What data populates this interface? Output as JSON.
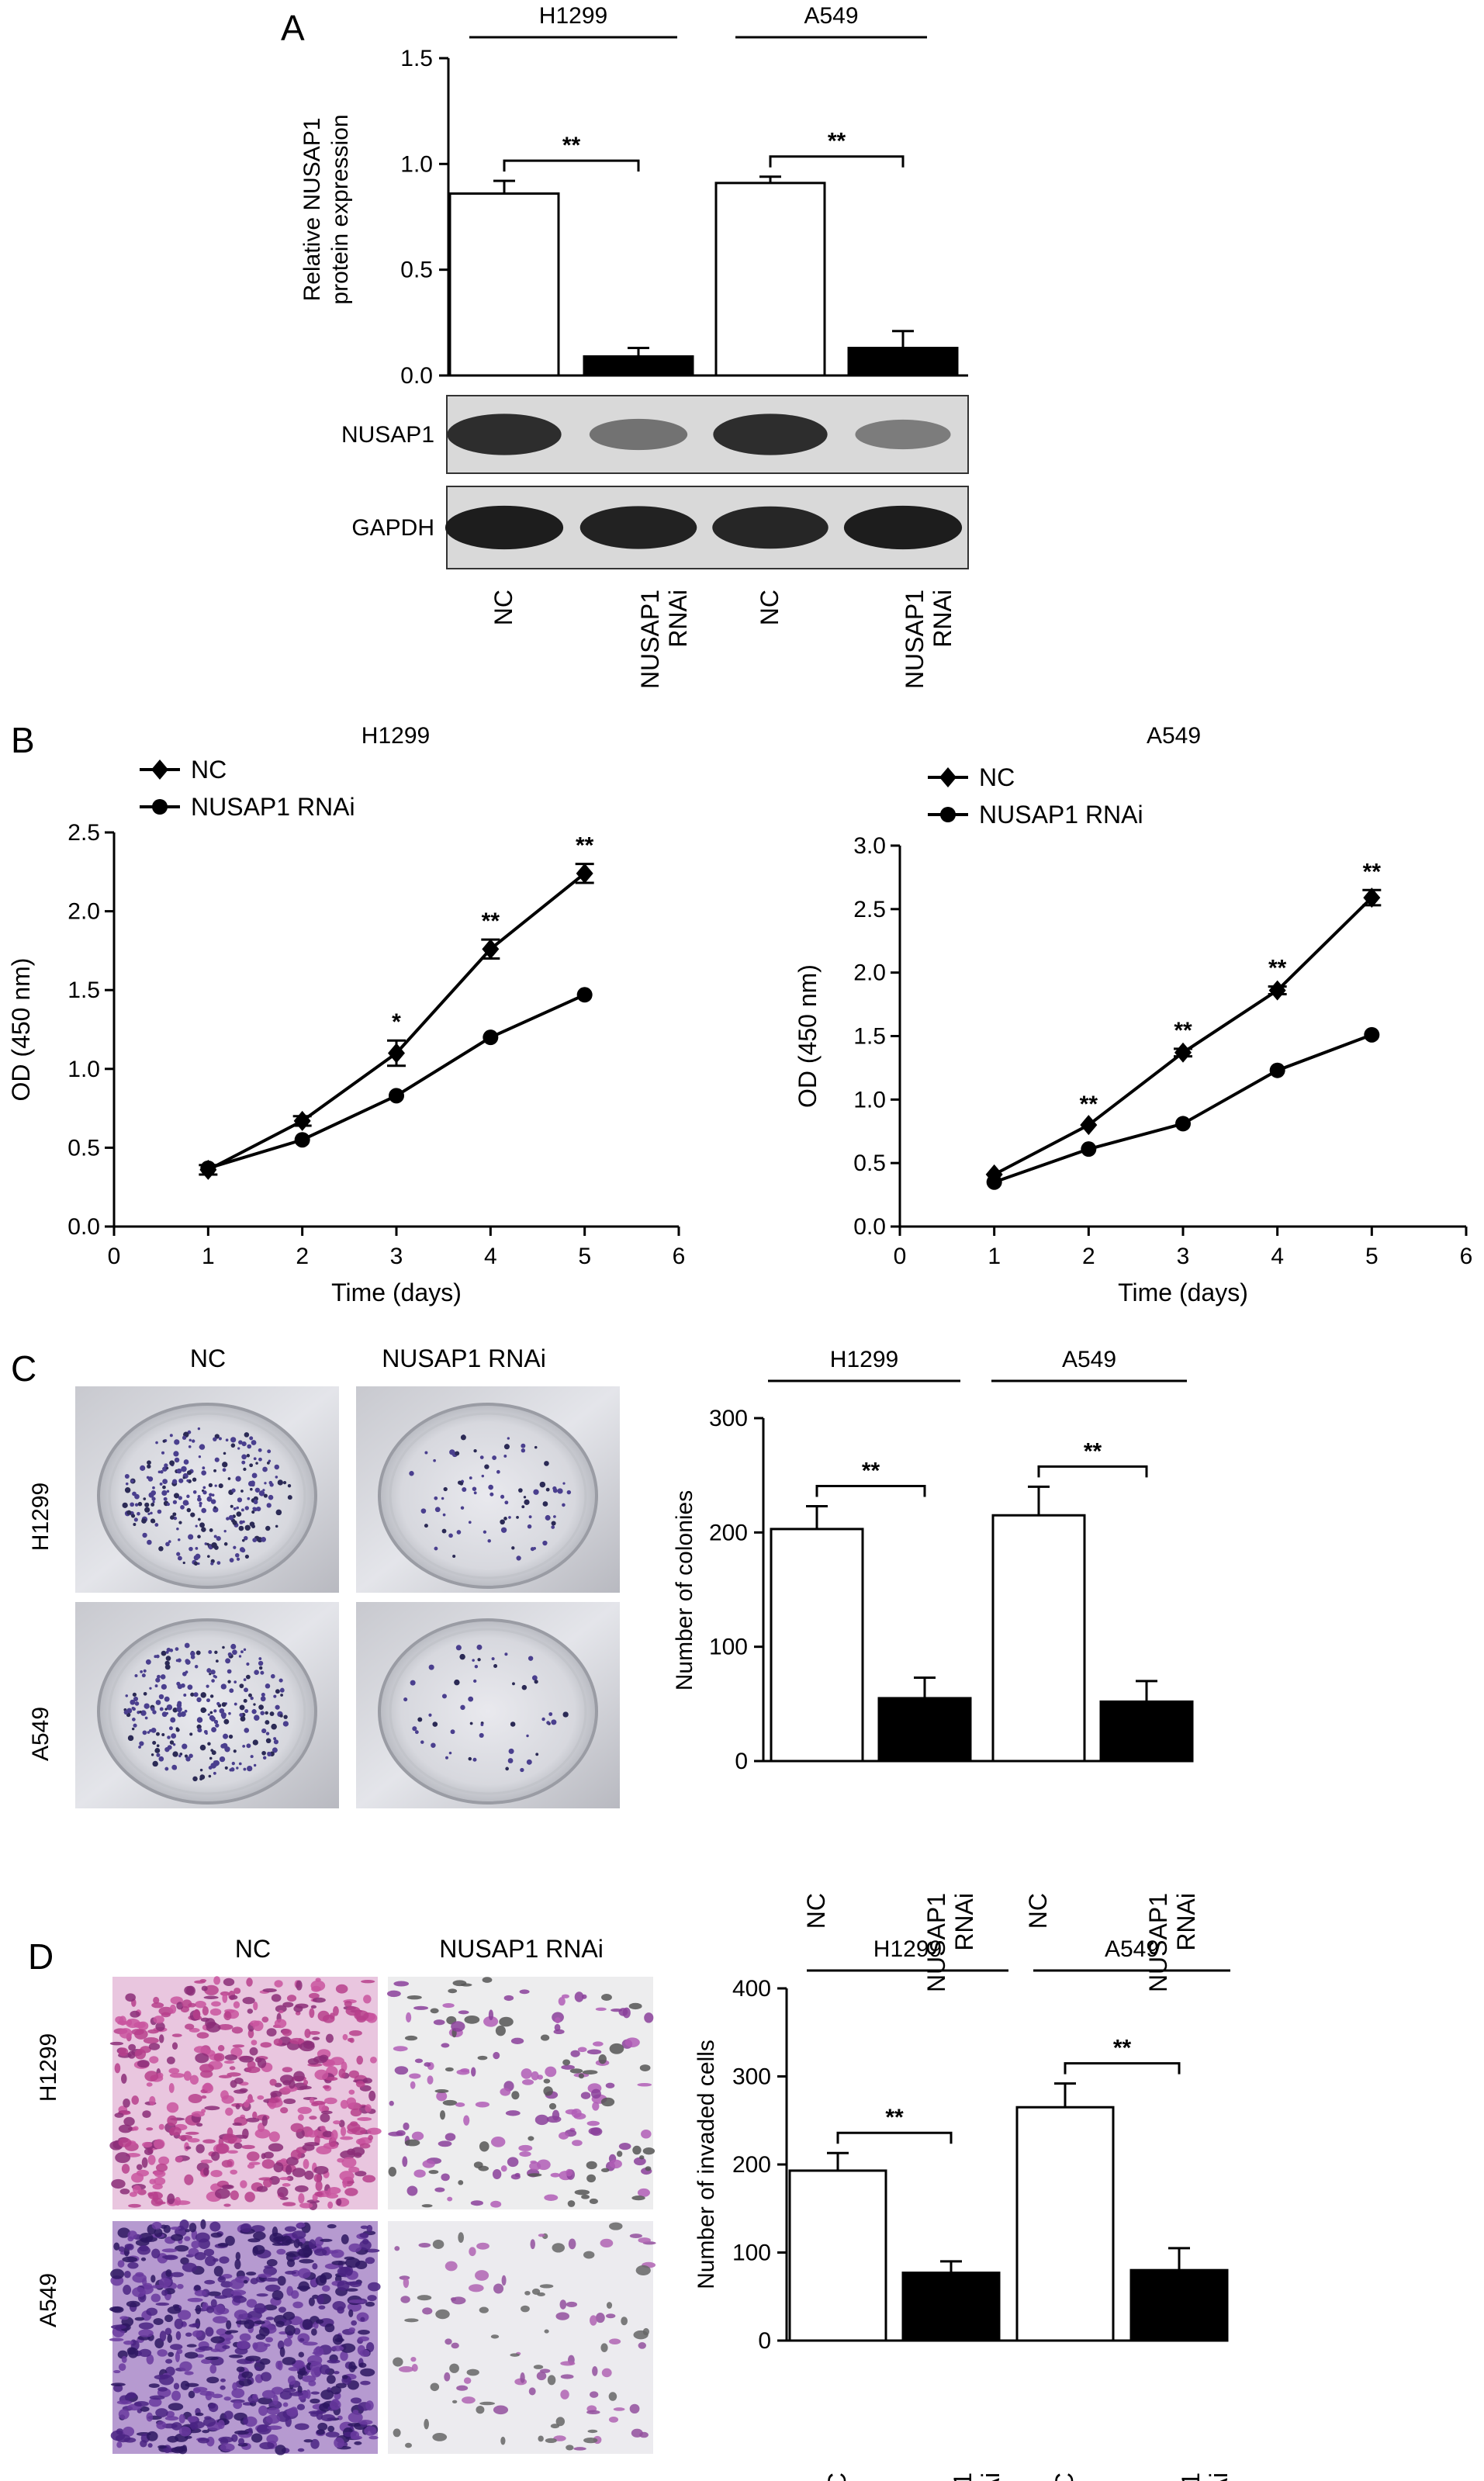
{
  "panels": {
    "A": {
      "letter": "A"
    },
    "B": {
      "letter": "B"
    },
    "C": {
      "letter": "C"
    },
    "D": {
      "letter": "D"
    }
  },
  "western_blot": {
    "rows": [
      "NUSAP1",
      "GAPDH"
    ],
    "nusap1_intensity": [
      0.86,
      0.48,
      0.86,
      0.42
    ],
    "gapdh_intensity": [
      0.95,
      0.92,
      0.9,
      0.95
    ]
  },
  "images": {
    "colony_columns": [
      "NC",
      "NUSAP1 RNAi"
    ],
    "colony_rows": [
      "H1299",
      "A549"
    ],
    "invasion_columns": [
      "NC",
      "NUSAP1 RNAi"
    ],
    "invasion_rows": [
      "H1299",
      "A549"
    ]
  },
  "chart_data": [
    {
      "id": "A",
      "type": "bar",
      "groups": [
        "H1299",
        "A549"
      ],
      "categories": [
        "NC",
        "NUSAP1\nRNAi",
        "NC",
        "NUSAP1\nRNAi"
      ],
      "values": [
        0.86,
        0.09,
        0.91,
        0.13
      ],
      "errors": [
        0.06,
        0.04,
        0.03,
        0.08
      ],
      "fills": [
        "#ffffff",
        "#000000",
        "#ffffff",
        "#000000"
      ],
      "ylabel": "Relative NUSAP1\nprotein expression",
      "ylim": [
        0,
        1.5
      ],
      "yticks": [
        "0.0",
        "0.5",
        "1.0",
        "1.5"
      ],
      "significance": [
        {
          "between": [
            0,
            1
          ],
          "label": "**"
        },
        {
          "between": [
            2,
            3
          ],
          "label": "**"
        }
      ]
    },
    {
      "id": "B-H1299",
      "type": "line",
      "title": "H1299",
      "x": [
        1,
        2,
        3,
        4,
        5
      ],
      "series": [
        {
          "name": "NC",
          "marker": "diamond",
          "values": [
            0.36,
            0.67,
            1.1,
            1.76,
            2.24
          ],
          "errors": [
            0.03,
            0.03,
            0.08,
            0.06,
            0.06
          ]
        },
        {
          "name": "NUSAP1 RNAi",
          "marker": "circle",
          "values": [
            0.37,
            0.55,
            0.83,
            1.2,
            1.47
          ],
          "errors": [
            0.02,
            0.02,
            0.02,
            0.02,
            0.02
          ]
        }
      ],
      "xlabel": "Time (days)",
      "ylabel": "OD (450 nm)",
      "xlim": [
        0,
        6
      ],
      "ylim": [
        0,
        2.5
      ],
      "xticks": [
        "0",
        "1",
        "2",
        "3",
        "4",
        "5",
        "6"
      ],
      "yticks": [
        "0.0",
        "0.5",
        "1.0",
        "1.5",
        "2.0",
        "2.5"
      ],
      "annotations": [
        {
          "x": 3,
          "label": "*"
        },
        {
          "x": 4,
          "label": "**"
        },
        {
          "x": 5,
          "label": "**"
        }
      ]
    },
    {
      "id": "B-A549",
      "type": "line",
      "title": "A549",
      "x": [
        1,
        2,
        3,
        4,
        5
      ],
      "series": [
        {
          "name": "NC",
          "marker": "diamond",
          "values": [
            0.41,
            0.8,
            1.37,
            1.86,
            2.59
          ],
          "errors": [
            0.02,
            0.02,
            0.03,
            0.03,
            0.06
          ]
        },
        {
          "name": "NUSAP1 RNAi",
          "marker": "circle",
          "values": [
            0.35,
            0.61,
            0.81,
            1.23,
            1.51
          ],
          "errors": [
            0.02,
            0.02,
            0.02,
            0.02,
            0.02
          ]
        }
      ],
      "xlabel": "Time (days)",
      "ylabel": "OD (450 nm)",
      "xlim": [
        0,
        6
      ],
      "ylim": [
        0,
        3.0
      ],
      "xticks": [
        "0",
        "1",
        "2",
        "3",
        "4",
        "5",
        "6"
      ],
      "yticks": [
        "0.0",
        "0.5",
        "1.0",
        "1.5",
        "2.0",
        "2.5",
        "3.0"
      ],
      "annotations": [
        {
          "x": 2,
          "label": "**"
        },
        {
          "x": 3,
          "label": "**"
        },
        {
          "x": 4,
          "label": "**"
        },
        {
          "x": 5,
          "label": "**"
        }
      ]
    },
    {
      "id": "C",
      "type": "bar",
      "groups": [
        "H1299",
        "A549"
      ],
      "categories": [
        "NC",
        "NUSAP1\nRNAi",
        "NC",
        "NUSAP1\nRNAi"
      ],
      "values": [
        203,
        55,
        215,
        52
      ],
      "errors": [
        20,
        18,
        25,
        18
      ],
      "fills": [
        "#ffffff",
        "#000000",
        "#ffffff",
        "#000000"
      ],
      "ylabel": "Number of colonies",
      "ylim": [
        0,
        300
      ],
      "yticks": [
        "0",
        "100",
        "200",
        "300"
      ],
      "significance": [
        {
          "between": [
            0,
            1
          ],
          "label": "**"
        },
        {
          "between": [
            2,
            3
          ],
          "label": "**"
        }
      ]
    },
    {
      "id": "D",
      "type": "bar",
      "groups": [
        "H1299",
        "A549"
      ],
      "categories": [
        "NC",
        "NUSAP1\nRNAi",
        "NC",
        "NUSAP1\nRNAi"
      ],
      "values": [
        193,
        77,
        265,
        80
      ],
      "errors": [
        20,
        13,
        27,
        25
      ],
      "fills": [
        "#ffffff",
        "#000000",
        "#ffffff",
        "#000000"
      ],
      "ylabel": "Number of invaded cells",
      "ylim": [
        0,
        400
      ],
      "yticks": [
        "0",
        "100",
        "200",
        "300",
        "400"
      ],
      "significance": [
        {
          "between": [
            0,
            1
          ],
          "label": "**"
        },
        {
          "between": [
            2,
            3
          ],
          "label": "**"
        }
      ]
    }
  ]
}
